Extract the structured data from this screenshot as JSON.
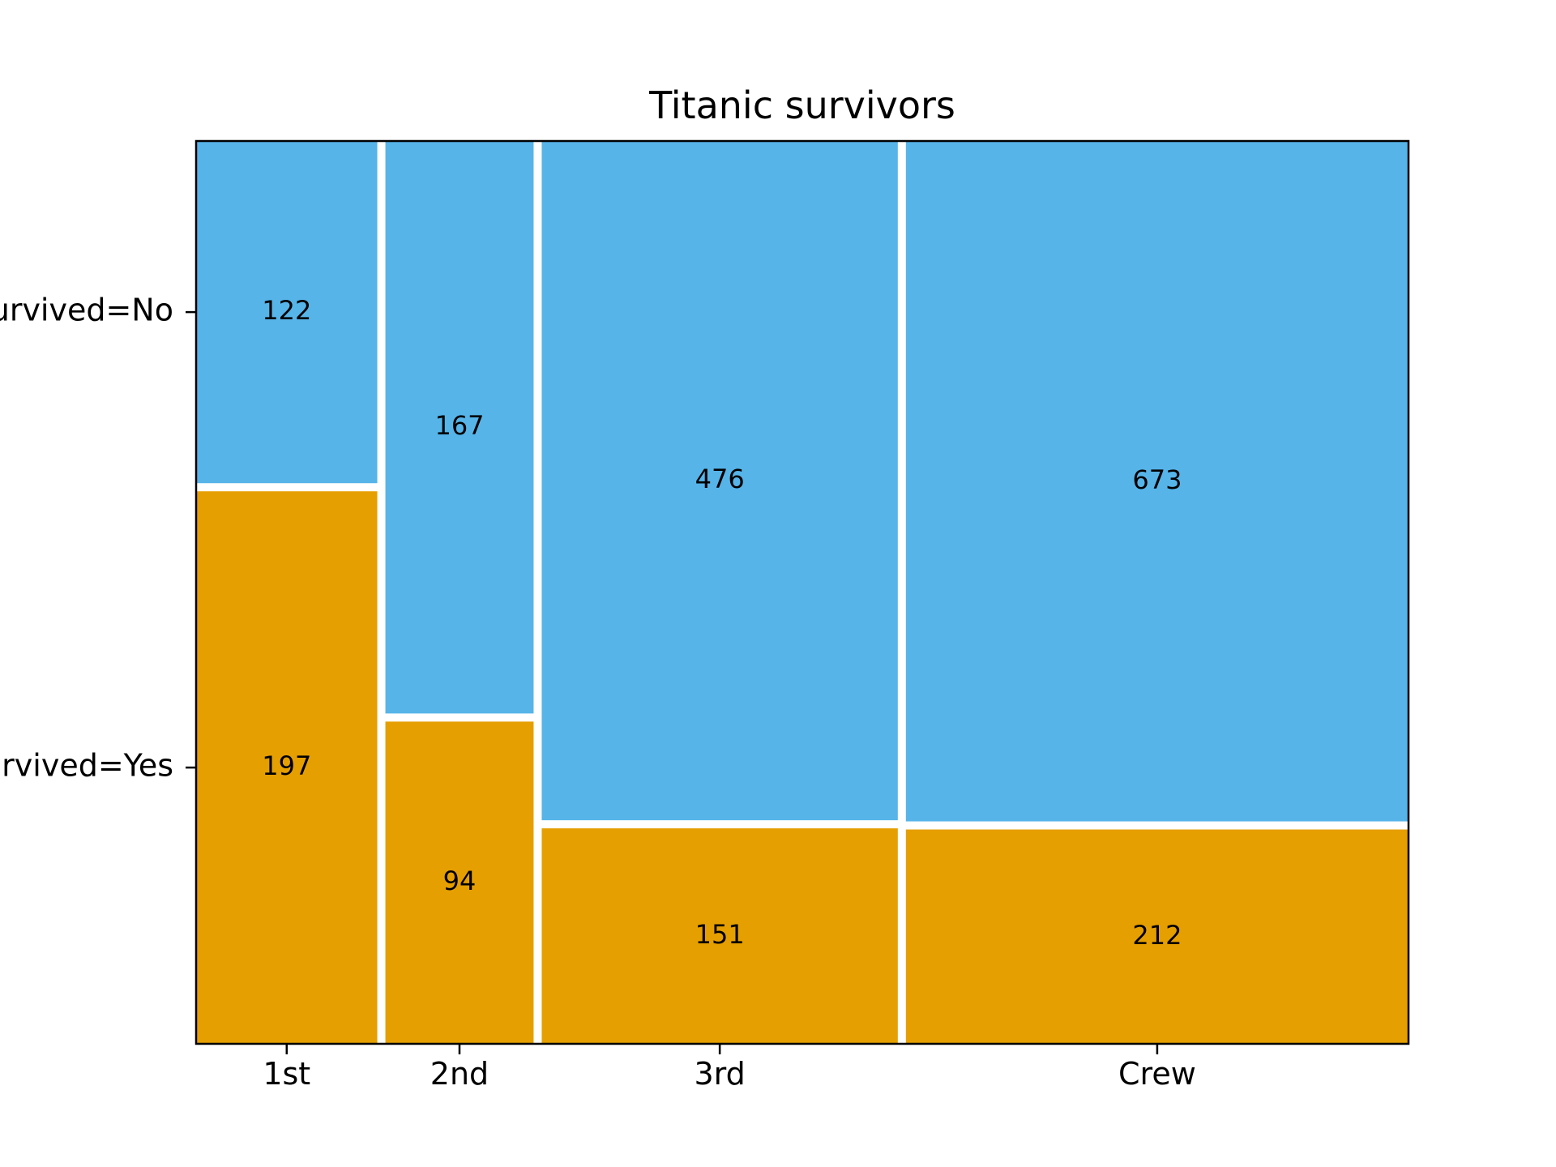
{
  "chart_data": {
    "type": "mosaic",
    "title": "Titanic survivors",
    "xlabel": "",
    "ylabel": "",
    "categories": [
      "1st",
      "2nd",
      "3rd",
      "Crew"
    ],
    "row_tick_labels": [
      "Survived=No",
      "Survived=Yes"
    ],
    "series": [
      {
        "key": "no",
        "values": [
          122,
          167,
          476,
          673
        ],
        "color": "#56B4E9"
      },
      {
        "key": "yes",
        "values": [
          197,
          94,
          151,
          212
        ],
        "color": "#E69F00"
      }
    ],
    "grid": false,
    "legend": "none"
  }
}
